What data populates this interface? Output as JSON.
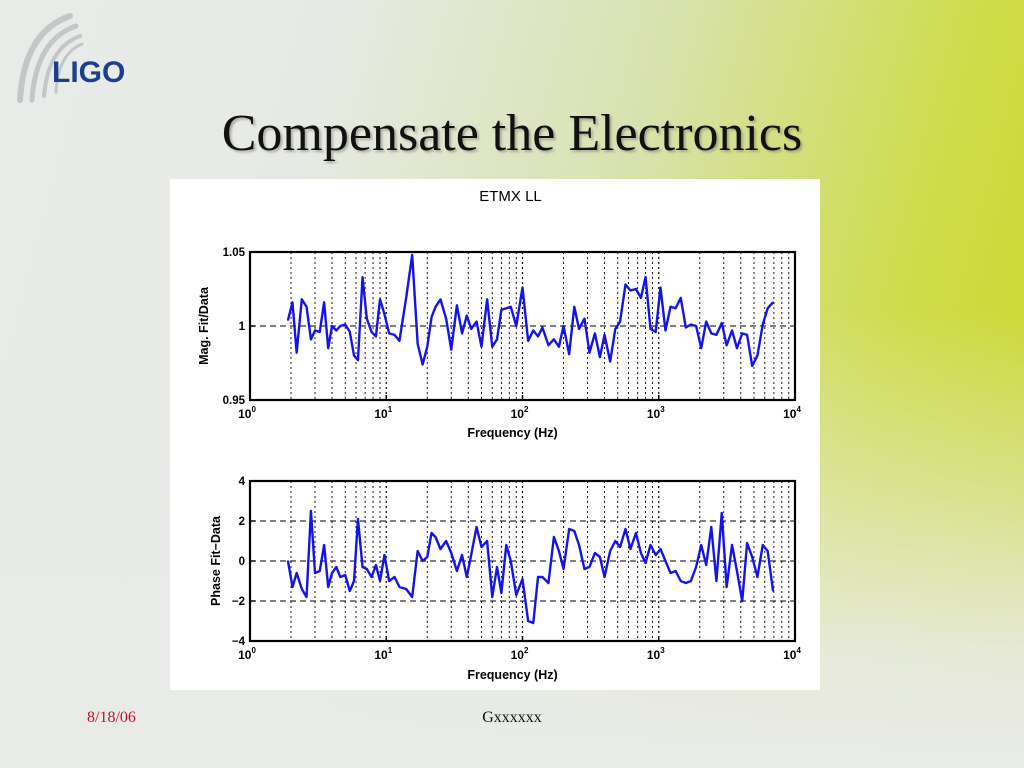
{
  "slide": {
    "logo_text": "LIGO",
    "title": "Compensate the Electronics",
    "footer_date": "8/18/06",
    "footer_id": "Gxxxxxx"
  },
  "colors": {
    "series": "#1414e6",
    "accent_green": "#c8d624",
    "date_red": "#c8102e",
    "logo_blue": "#1f3d8f"
  },
  "chart_data": [
    {
      "type": "line",
      "title": "ETMX LL",
      "xlabel": "Frequency (Hz)",
      "ylabel": "Mag. Fit/Data",
      "xscale": "log",
      "xlim": [
        1,
        10000
      ],
      "ylim": [
        0.95,
        1.05
      ],
      "xticks": [
        {
          "base": "10",
          "exp": "0"
        },
        {
          "base": "10",
          "exp": "1"
        },
        {
          "base": "10",
          "exp": "2"
        },
        {
          "base": "10",
          "exp": "3"
        },
        {
          "base": "10",
          "exp": "4"
        }
      ],
      "yticks": [
        "0.95",
        "1",
        "1.05"
      ],
      "grid": true,
      "series": [
        {
          "x": [
            1.9,
            2.05,
            2.2,
            2.4,
            2.6,
            2.8,
            3.0,
            3.25,
            3.5,
            3.75,
            4.0,
            4.3,
            4.6,
            5.0,
            5.4,
            5.8,
            6.2,
            6.7,
            7.2,
            7.8,
            8.4,
            9.0,
            9.7,
            10.5,
            11.5,
            12.5,
            14.0,
            15.5,
            17.0,
            18.5,
            20.0,
            21.5,
            23.0,
            25.0,
            27.5,
            30.0,
            33.0,
            36.0,
            39.0,
            42.0,
            46.0,
            50.0,
            55.0,
            60.0,
            65.0,
            70.0,
            76.0,
            82.0,
            90.0,
            100.0,
            110.0,
            120.0,
            130.0,
            140.0,
            155.0,
            170.0,
            185.0,
            200.0,
            220.0,
            240.0,
            260.0,
            285.0,
            310.0,
            340.0,
            370.0,
            400.0,
            440.0,
            480.0,
            520.0,
            570.0,
            620.0,
            680.0,
            740.0,
            800.0,
            870.0,
            950.0,
            1030.0,
            1120.0,
            1220.0,
            1330.0,
            1450.0,
            1580.0,
            1720.0,
            1880.0,
            2050.0,
            2230.0,
            2430.0,
            2650.0,
            2900.0,
            3150.0,
            3450.0,
            3750.0,
            4100.0,
            4450.0,
            4850.0,
            5300.0,
            5800.0,
            6300.0,
            6900.0
          ],
          "y": [
            1.004,
            1.016,
            0.982,
            1.018,
            1.013,
            0.991,
            0.997,
            0.996,
            1.016,
            0.985,
            1.0,
            0.997,
            1.0,
            1.001,
            0.996,
            0.98,
            0.977,
            1.033,
            1.005,
            0.996,
            0.993,
            1.018,
            1.008,
            0.995,
            0.994,
            0.99,
            1.019,
            1.048,
            0.988,
            0.974,
            0.986,
            1.006,
            1.013,
            1.018,
            1.005,
            0.984,
            1.014,
            0.995,
            1.007,
            0.998,
            1.003,
            0.986,
            1.018,
            0.986,
            0.991,
            1.011,
            1.012,
            1.013,
            1.0,
            1.026,
            0.99,
            0.997,
            0.993,
            0.999,
            0.987,
            0.991,
            0.986,
            1.0,
            0.981,
            1.013,
            0.998,
            1.005,
            0.982,
            0.995,
            0.979,
            0.994,
            0.976,
            0.998,
            1.003,
            1.028,
            1.024,
            1.025,
            1.019,
            1.033,
            0.998,
            0.996,
            1.026,
            0.997,
            1.013,
            1.012,
            1.019,
            0.999,
            1.001,
            1.0,
            0.985,
            1.003,
            0.995,
            0.994,
            1.002,
            0.987,
            0.997,
            0.985,
            0.995,
            0.994,
            0.973,
            0.98,
            1.001,
            1.012,
            1.016
          ]
        }
      ]
    },
    {
      "type": "line",
      "title": "",
      "xlabel": "Frequency (Hz)",
      "ylabel": "Phase Fit−Data",
      "xscale": "log",
      "xlim": [
        1,
        10000
      ],
      "ylim": [
        -4,
        4
      ],
      "xticks": [
        {
          "base": "10",
          "exp": "0"
        },
        {
          "base": "10",
          "exp": "1"
        },
        {
          "base": "10",
          "exp": "2"
        },
        {
          "base": "10",
          "exp": "3"
        },
        {
          "base": "10",
          "exp": "4"
        }
      ],
      "yticks": [
        "−4",
        "−2",
        "0",
        "2",
        "4"
      ],
      "grid": true,
      "series": [
        {
          "x": [
            1.9,
            2.05,
            2.2,
            2.4,
            2.6,
            2.8,
            3.0,
            3.25,
            3.5,
            3.75,
            4.0,
            4.3,
            4.6,
            5.0,
            5.4,
            5.8,
            6.2,
            6.7,
            7.2,
            7.8,
            8.4,
            9.0,
            9.7,
            10.5,
            11.5,
            12.5,
            14.0,
            15.5,
            17.0,
            18.5,
            20.0,
            21.5,
            23.0,
            25.0,
            27.5,
            30.0,
            33.0,
            36.0,
            39.0,
            42.0,
            46.0,
            50.0,
            55.0,
            60.0,
            65.0,
            70.0,
            76.0,
            82.0,
            90.0,
            100.0,
            110.0,
            120.0,
            130.0,
            140.0,
            155.0,
            170.0,
            185.0,
            200.0,
            220.0,
            240.0,
            260.0,
            285.0,
            310.0,
            340.0,
            370.0,
            400.0,
            440.0,
            480.0,
            520.0,
            570.0,
            620.0,
            680.0,
            740.0,
            800.0,
            870.0,
            950.0,
            1030.0,
            1120.0,
            1220.0,
            1330.0,
            1450.0,
            1580.0,
            1720.0,
            1880.0,
            2050.0,
            2230.0,
            2430.0,
            2650.0,
            2900.0,
            3150.0,
            3450.0,
            3750.0,
            4100.0,
            4450.0,
            4850.0,
            5300.0,
            5800.0,
            6300.0,
            6900.0
          ],
          "y": [
            0.0,
            -1.3,
            -0.6,
            -1.4,
            -1.8,
            2.5,
            -0.6,
            -0.5,
            0.8,
            -1.3,
            -0.6,
            -0.3,
            -0.8,
            -0.7,
            -1.5,
            -1.0,
            2.1,
            -0.3,
            -0.4,
            -0.8,
            -0.2,
            -1.0,
            0.3,
            -1.0,
            -0.8,
            -1.3,
            -1.4,
            -1.8,
            0.5,
            0.0,
            0.2,
            1.4,
            1.2,
            0.6,
            1.0,
            0.4,
            -0.5,
            0.3,
            -0.8,
            0.3,
            1.7,
            0.7,
            1.0,
            -1.8,
            -0.3,
            -1.6,
            0.8,
            0.0,
            -1.7,
            -0.9,
            -3.0,
            -3.1,
            -0.8,
            -0.8,
            -1.1,
            1.2,
            0.5,
            -0.4,
            1.6,
            1.5,
            0.8,
            -0.4,
            -0.3,
            0.4,
            0.2,
            -0.8,
            0.5,
            1.0,
            0.7,
            1.6,
            0.6,
            1.4,
            0.4,
            -0.1,
            0.8,
            0.3,
            0.6,
            0.0,
            -0.6,
            -0.5,
            -1.0,
            -1.1,
            -1.0,
            -0.3,
            0.8,
            -0.2,
            1.7,
            -1.0,
            2.4,
            -1.3,
            0.8,
            -0.5,
            -2.0,
            0.9,
            0.2,
            -0.8,
            0.8,
            0.5,
            -1.5
          ]
        }
      ]
    }
  ]
}
